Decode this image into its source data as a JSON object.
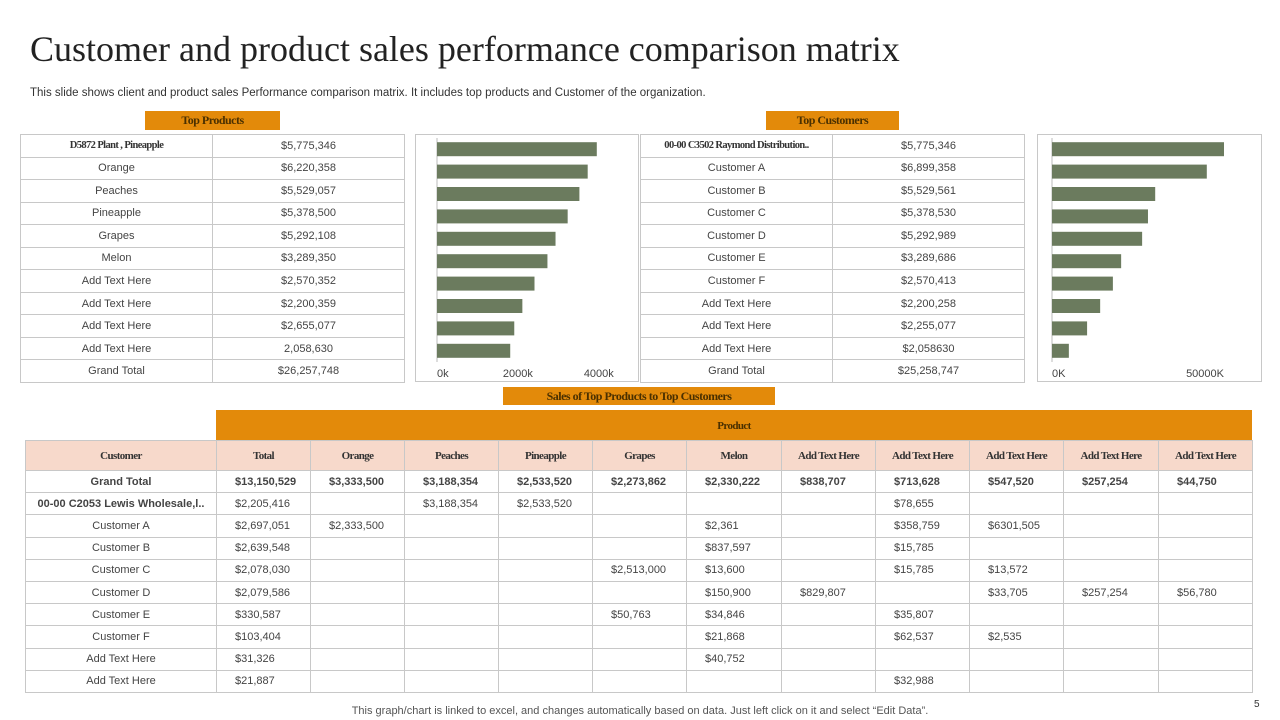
{
  "header": {
    "title": "Customer and product sales performance comparison matrix",
    "subtitle": "This slide shows client and product sales Performance comparison matrix. It includes top products and Customer of the organization."
  },
  "labels": {
    "top_products": "Top Products",
    "top_customers": "Top Customers",
    "matrix": "Sales of Top Products to Top Customers"
  },
  "products_table": {
    "rows": [
      [
        "D5872 Plant , Pineapple",
        "$5,775,346"
      ],
      [
        "Orange",
        "$6,220,358"
      ],
      [
        "Peaches",
        "$5,529,057"
      ],
      [
        "Pineapple",
        "$5,378,500"
      ],
      [
        "Grapes",
        "$5,292,108"
      ],
      [
        "Melon",
        "$3,289,350"
      ],
      [
        "Add Text Here",
        "$2,570,352"
      ],
      [
        "Add Text Here",
        "$2,200,359"
      ],
      [
        "Add Text Here",
        "$2,655,077"
      ],
      [
        "Add Text Here",
        "2,058,630"
      ],
      [
        "Grand Total",
        "$26,257,748"
      ]
    ]
  },
  "customers_table": {
    "rows": [
      [
        "00-00 C3502 Raymond Distribution..",
        "$5,775,346"
      ],
      [
        "Customer A",
        "$6,899,358"
      ],
      [
        "Customer B",
        "$5,529,561"
      ],
      [
        "Customer C",
        "$5,378,530"
      ],
      [
        "Customer D",
        "$5,292,989"
      ],
      [
        "Customer E",
        "$3,289,686"
      ],
      [
        "Customer F",
        "$2,570,413"
      ],
      [
        "Add Text Here",
        "$2,200,258"
      ],
      [
        "Add Text Here",
        "$2,255,077"
      ],
      [
        "Add Text Here",
        "$2,058630"
      ],
      [
        "Grand Total",
        "$25,258,747"
      ]
    ]
  },
  "chart_data": [
    {
      "type": "bar",
      "orientation": "horizontal",
      "categories": [
        null,
        null,
        null,
        null,
        null,
        null,
        null,
        null,
        null,
        null
      ],
      "values": [
        3950000,
        3725000,
        3520000,
        3230000,
        2930000,
        2730000,
        2410000,
        2110000,
        1910000,
        1810000
      ],
      "color": "#6b7b5e",
      "xlim": [
        0,
        4400000
      ],
      "xticks": [
        {
          "value": 0,
          "label": "0k"
        },
        {
          "value": 2000000,
          "label": "2000k"
        },
        {
          "value": 4000000,
          "label": "4000k"
        }
      ]
    },
    {
      "type": "bar",
      "orientation": "horizontal",
      "categories": [
        null,
        null,
        null,
        null,
        null,
        null,
        null,
        null,
        null,
        null
      ],
      "values": [
        50000000,
        45000000,
        30000000,
        27900000,
        26200000,
        20100000,
        17700000,
        14000000,
        10200000,
        4900000
      ],
      "color": "#6b7b5e",
      "xlim": [
        0,
        50000000
      ],
      "xticks": [
        {
          "value": 0,
          "label": "0K"
        },
        {
          "value": 50000000,
          "label": "50000K"
        }
      ]
    }
  ],
  "matrix": {
    "group_header": "Product",
    "columns": [
      "Customer",
      "Total",
      "Orange",
      "Peaches",
      "Pineapple",
      "Grapes",
      "Melon",
      "Add Text Here",
      "Add Text Here",
      "Add Text Here",
      "Add Text Here",
      "Add Text Here"
    ],
    "rows": [
      [
        "Grand Total",
        "$13,150,529",
        "$3,333,500",
        "$3,188,354",
        "$2,533,520",
        "$2,273,862",
        "$2,330,222",
        "$838,707",
        "$713,628",
        "$547,520",
        "$257,254",
        "$44,750"
      ],
      [
        "00-00 C2053 Lewis Wholesale,l..",
        "$2,205,416",
        null,
        "$3,188,354",
        "$2,533,520",
        null,
        null,
        null,
        "$78,655",
        null,
        null,
        null
      ],
      [
        "Customer A",
        "$2,697,051",
        "$2,333,500",
        null,
        null,
        null,
        "$2,361",
        null,
        "$358,759",
        "$6301,505",
        null,
        null
      ],
      [
        "Customer B",
        "$2,639,548",
        null,
        null,
        null,
        null,
        "$837,597",
        null,
        "$15,785",
        null,
        null,
        null
      ],
      [
        "Customer C",
        "$2,078,030",
        null,
        null,
        null,
        "$2,513,000",
        "$13,600",
        null,
        "$15,785",
        "$13,572",
        null,
        null
      ],
      [
        "Customer D",
        "$2,079,586",
        null,
        null,
        null,
        null,
        "$150,900",
        "$829,807",
        null,
        "$33,705",
        "$257,254",
        "$56,780"
      ],
      [
        "Customer E",
        "$330,587",
        null,
        null,
        null,
        "$50,763",
        "$34,846",
        null,
        "$35,807",
        null,
        null,
        null
      ],
      [
        "Customer F",
        "$103,404",
        null,
        null,
        null,
        null,
        "$21,868",
        null,
        "$62,537",
        "$2,535",
        null,
        null
      ],
      [
        "Add Text Here",
        "$31,326",
        null,
        null,
        null,
        null,
        "$40,752",
        null,
        null,
        null,
        null,
        null
      ],
      [
        "Add Text Here",
        "$21,887",
        null,
        null,
        null,
        null,
        null,
        null,
        "$32,988",
        null,
        null,
        null
      ]
    ]
  },
  "footer": {
    "note": "This graph/chart is linked to excel,  and changes automatically based on data. Just left click on it and select “Edit Data”.",
    "page": "5"
  }
}
